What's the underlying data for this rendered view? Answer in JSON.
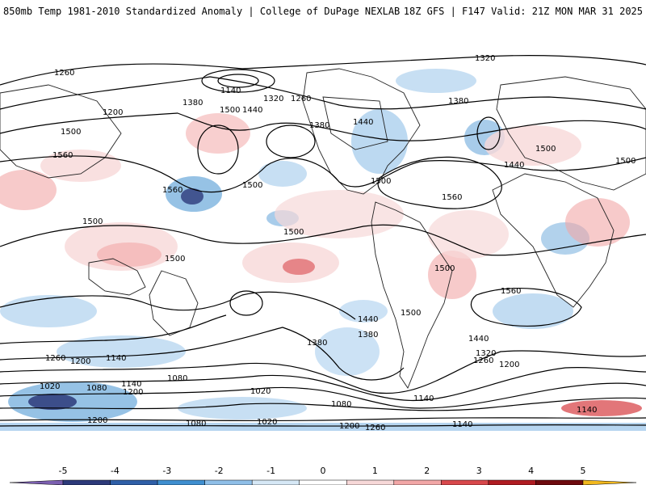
{
  "header": {
    "title_left": "850mb Temp 1981-2010 Standardized Anomaly | College of DuPage NEXLAB",
    "title_right": "18Z GFS | F147 Valid: 21Z MON MAR 31 2025"
  },
  "contour_labels": [
    "1260",
    "1320",
    "1140",
    "1380",
    "1320",
    "1260",
    "1380",
    "1200",
    "1500",
    "1440",
    "1380",
    "1440",
    "1500",
    "1560",
    "1500",
    "1560",
    "1500",
    "1500",
    "1560",
    "1440",
    "1500",
    "1500",
    "1500",
    "1380",
    "1440",
    "1500",
    "1500",
    "1500",
    "1560",
    "1440",
    "1380",
    "1320",
    "1260",
    "1200",
    "1140",
    "1080",
    "1020",
    "1260",
    "1200",
    "1140",
    "1080",
    "1020",
    "1200",
    "1140",
    "1080",
    "1200",
    "1140",
    "1200",
    "1260",
    "1080",
    "1020",
    "1140"
  ],
  "colorbar": {
    "ticks": [
      "-5",
      "-4",
      "-3",
      "-2",
      "-1",
      "0",
      "1",
      "2",
      "3",
      "4",
      "5"
    ],
    "colors": [
      "#7b5fb0",
      "#2d3a7a",
      "#2f5fa8",
      "#3f8fd0",
      "#8fbfe8",
      "#d6e8f6",
      "#ffffff",
      "#f7d8d8",
      "#f2a7a7",
      "#d8484c",
      "#b01c22",
      "#6e0a0e",
      "#f2b81d"
    ]
  }
}
